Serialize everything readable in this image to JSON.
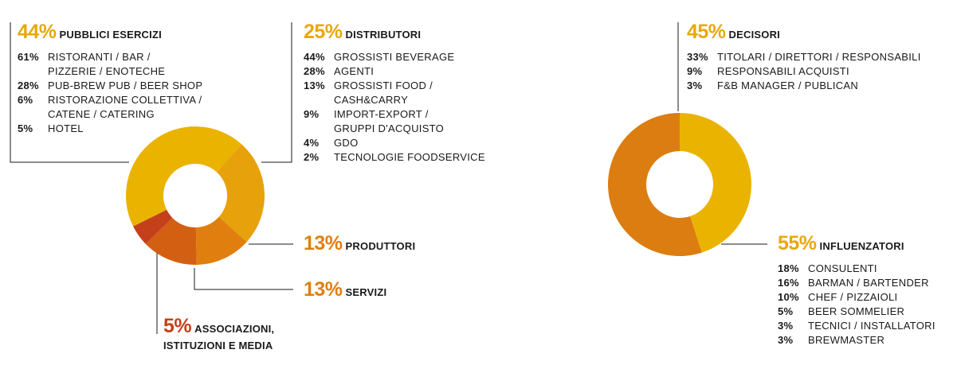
{
  "colors": {
    "yellow": "#eab300",
    "amber": "#e7a10b",
    "orange": "#e07f0f",
    "deep_orange": "#d35f13",
    "red": "#c4401b",
    "accent": "#e8a80c"
  },
  "chart_data": [
    {
      "type": "pie",
      "donut": true,
      "slices": [
        {
          "label": "PUBBLICI ESERCIZI",
          "value": 44,
          "pct_label": "44%",
          "color": "#eab300",
          "breakdown": [
            {
              "pct": "61%",
              "label": "RISTORANTI / BAR /\nPIZZERIE / ENOTECHE"
            },
            {
              "pct": "28%",
              "label": "PUB-BREW PUB / BEER SHOP"
            },
            {
              "pct": "6%",
              "label": "RISTORAZIONE COLLETTIVA /\nCATENE / CATERING"
            },
            {
              "pct": "5%",
              "label": "HOTEL"
            }
          ]
        },
        {
          "label": "DISTRIBUTORI",
          "value": 25,
          "pct_label": "25%",
          "color": "#e7a10b",
          "breakdown": [
            {
              "pct": "44%",
              "label": "GROSSISTI BEVERAGE"
            },
            {
              "pct": "28%",
              "label": "AGENTI"
            },
            {
              "pct": "13%",
              "label": "GROSSISTI FOOD /\nCASH&CARRY"
            },
            {
              "pct": "9%",
              "label": "IMPORT-EXPORT /\nGRUPPI D'ACQUISTO"
            },
            {
              "pct": "4%",
              "label": "GDO"
            },
            {
              "pct": "2%",
              "label": "TECNOLOGIE FOODSERVICE"
            }
          ]
        },
        {
          "label": "PRODUTTORI",
          "value": 13,
          "pct_label": "13%",
          "color": "#e07f0f",
          "breakdown": []
        },
        {
          "label": "SERVIZI",
          "value": 13,
          "pct_label": "13%",
          "color": "#d35f13",
          "breakdown": []
        },
        {
          "label": "ASSOCIAZIONI,\nISTITUZIONI E MEDIA",
          "value": 5,
          "pct_label": "5%",
          "color": "#c4401b",
          "breakdown": []
        }
      ]
    },
    {
      "type": "pie",
      "donut": true,
      "slices": [
        {
          "label": "DECISORI",
          "value": 45,
          "pct_label": "45%",
          "color": "#eab300",
          "breakdown": [
            {
              "pct": "33%",
              "label": "TITOLARI / DIRETTORI / RESPONSABILI"
            },
            {
              "pct": "9%",
              "label": "RESPONSABILI ACQUISTI"
            },
            {
              "pct": "3%",
              "label": "F&B MANAGER / PUBLICAN"
            }
          ]
        },
        {
          "label": "INFLUENZATORI",
          "value": 55,
          "pct_label": "55%",
          "color": "#dc7d12",
          "breakdown": [
            {
              "pct": "18%",
              "label": "CONSULENTI"
            },
            {
              "pct": "16%",
              "label": "BARMAN / BARTENDER"
            },
            {
              "pct": "10%",
              "label": "CHEF / PIZZAIOLI"
            },
            {
              "pct": "5%",
              "label": "BEER SOMMELIER"
            },
            {
              "pct": "3%",
              "label": "TECNICI / INSTALLATORI"
            },
            {
              "pct": "3%",
              "label": "BREWMASTER"
            }
          ]
        }
      ]
    }
  ]
}
